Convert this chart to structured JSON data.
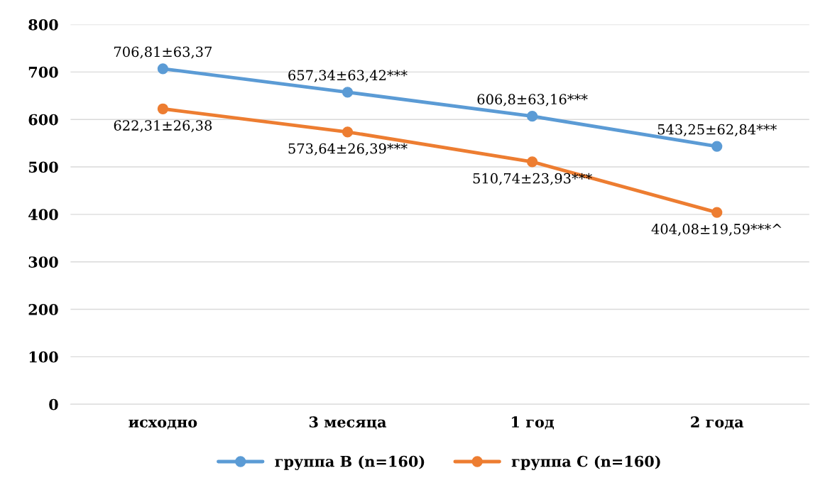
{
  "chart_data": {
    "type": "line",
    "categories": [
      "исходно",
      "3 месяца",
      "1 год",
      "2 года"
    ],
    "series": [
      {
        "name": "группа В (n=160)",
        "color": "#5b9bd5",
        "values": [
          706.81,
          657.34,
          606.8,
          543.25
        ],
        "value_labels": [
          "706,81±63,37",
          "657,34±63,42***",
          "606,8±63,16***",
          "543,25±62,84***"
        ]
      },
      {
        "name": "группа С (n=160)",
        "color": "#ed7d31",
        "values": [
          622.31,
          573.64,
          510.74,
          404.08
        ],
        "value_labels": [
          "622,31±26,38",
          "573,64±26,39***",
          "510,74±23,93***",
          "404,08±19,59***^"
        ]
      }
    ],
    "ylim": [
      0,
      800
    ],
    "yticks": [
      0,
      100,
      200,
      300,
      400,
      500,
      600,
      700,
      800
    ],
    "grid": "y",
    "legend": "bottom",
    "marker": "circle",
    "line_style": "solid"
  }
}
